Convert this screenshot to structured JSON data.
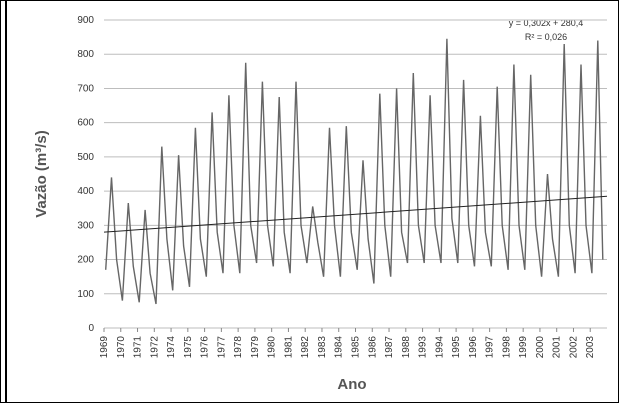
{
  "chart_data": {
    "type": "line",
    "xlabel": "Ano",
    "ylabel": "Vazão (m³/s)",
    "annotations": [
      "y = 0,302x + 280,4",
      "R² = 0,026"
    ],
    "x": [
      0.1,
      0.45,
      0.75,
      1.1,
      1.45,
      1.75,
      2.1,
      2.45,
      2.75,
      3.1,
      3.45,
      3.75,
      4.1,
      4.45,
      4.75,
      5.1,
      5.45,
      5.75,
      6.1,
      6.45,
      6.75,
      7.1,
      7.45,
      7.75,
      8.1,
      8.45,
      8.75,
      9.1,
      9.45,
      9.75,
      10.1,
      10.45,
      10.75,
      11.1,
      11.45,
      11.75,
      12.1,
      12.45,
      12.75,
      13.1,
      13.45,
      13.75,
      14.1,
      14.45,
      14.75,
      15.1,
      15.45,
      15.75,
      16.1,
      16.45,
      16.75,
      17.1,
      17.45,
      17.75,
      18.1,
      18.45,
      18.75,
      19.1,
      19.45,
      19.75,
      20.1,
      20.45,
      20.75,
      21.1,
      21.45,
      21.75,
      22.1,
      22.45,
      22.75,
      23.1,
      23.45,
      23.75,
      24.1,
      24.45,
      24.75,
      25.1,
      25.45,
      25.75,
      26.1,
      26.45,
      26.75,
      27.1,
      27.45,
      27.75,
      28.1,
      28.45,
      28.75,
      29.1,
      29.45,
      29.75
    ],
    "series": [
      {
        "color": "#666666",
        "values": [
          170,
          440,
          200,
          80,
          365,
          180,
          75,
          345,
          160,
          70,
          530,
          260,
          110,
          505,
          240,
          120,
          585,
          260,
          150,
          630,
          280,
          160,
          680,
          300,
          160,
          775,
          300,
          190,
          720,
          300,
          180,
          675,
          280,
          160,
          720,
          300,
          190,
          355,
          250,
          150,
          585,
          300,
          150,
          590,
          280,
          170,
          490,
          260,
          130,
          685,
          300,
          150,
          700,
          280,
          190,
          745,
          300,
          190,
          680,
          300,
          190,
          845,
          320,
          190,
          725,
          300,
          180,
          620,
          280,
          180,
          705,
          300,
          170,
          770,
          300,
          170,
          740,
          300,
          150,
          450,
          260,
          150,
          830,
          300,
          160,
          770,
          300,
          160,
          840,
          200
        ]
      }
    ],
    "trendline": {
      "x": [
        0,
        30
      ],
      "values": [
        280,
        385
      ],
      "color": "#222222"
    },
    "xlim": [
      0,
      30
    ],
    "xticks": [
      {
        "value": 0,
        "label": "1969"
      },
      {
        "value": 1,
        "label": "1970"
      },
      {
        "value": 2,
        "label": "1971"
      },
      {
        "value": 3,
        "label": "1972"
      },
      {
        "value": 4,
        "label": "1974"
      },
      {
        "value": 5,
        "label": "1975"
      },
      {
        "value": 6,
        "label": "1976"
      },
      {
        "value": 7,
        "label": "1977"
      },
      {
        "value": 8,
        "label": "1978"
      },
      {
        "value": 9,
        "label": "1979"
      },
      {
        "value": 10,
        "label": "1980"
      },
      {
        "value": 11,
        "label": "1981"
      },
      {
        "value": 12,
        "label": "1982"
      },
      {
        "value": 13,
        "label": "1983"
      },
      {
        "value": 14,
        "label": "1984"
      },
      {
        "value": 15,
        "label": "1985"
      },
      {
        "value": 16,
        "label": "1986"
      },
      {
        "value": 17,
        "label": "1987"
      },
      {
        "value": 18,
        "label": "1988"
      },
      {
        "value": 19,
        "label": "1993"
      },
      {
        "value": 20,
        "label": "1994"
      },
      {
        "value": 21,
        "label": "1995"
      },
      {
        "value": 22,
        "label": "1996"
      },
      {
        "value": 23,
        "label": "1997"
      },
      {
        "value": 24,
        "label": "1998"
      },
      {
        "value": 25,
        "label": "1999"
      },
      {
        "value": 26,
        "label": "2000"
      },
      {
        "value": 27,
        "label": "2001"
      },
      {
        "value": 28,
        "label": "2002"
      },
      {
        "value": 29,
        "label": "2003"
      }
    ],
    "ylim": [
      0,
      900
    ],
    "yticks": [
      0,
      100,
      200,
      300,
      400,
      500,
      600,
      700,
      800,
      900
    ],
    "grid": true
  }
}
